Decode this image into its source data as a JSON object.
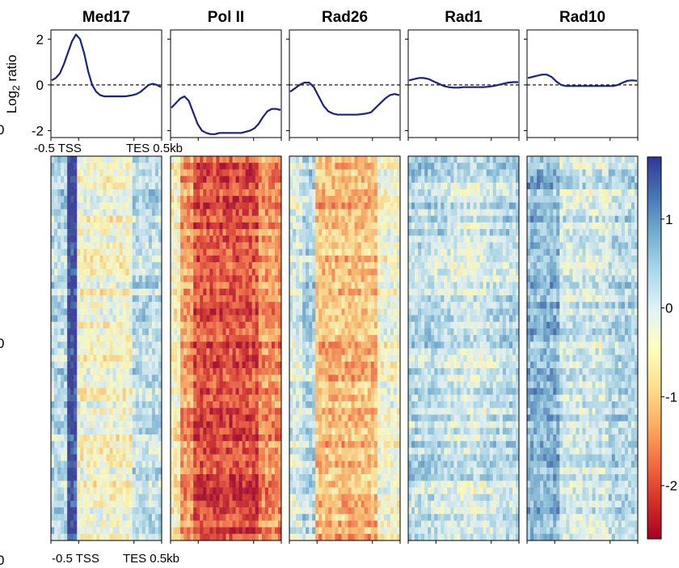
{
  "chart_data": {
    "type": "heatmap",
    "panels": [
      {
        "title": "Med17",
        "profile": [
          0.2,
          0.3,
          0.5,
          0.9,
          1.4,
          1.9,
          2.2,
          2.0,
          1.4,
          0.6,
          0.0,
          -0.3,
          -0.45,
          -0.5,
          -0.5,
          -0.5,
          -0.5,
          -0.5,
          -0.5,
          -0.48,
          -0.45,
          -0.4,
          -0.3,
          -0.15,
          0.0,
          0.05,
          0.0,
          -0.1
        ],
        "heatmap_pattern": "strong_tss_band"
      },
      {
        "title": "Pol II",
        "profile": [
          -1.0,
          -0.8,
          -0.6,
          -0.5,
          -0.7,
          -1.2,
          -1.7,
          -2.0,
          -2.1,
          -2.15,
          -2.15,
          -2.1,
          -2.1,
          -2.1,
          -2.1,
          -2.1,
          -2.1,
          -2.05,
          -2.0,
          -1.9,
          -1.7,
          -1.4,
          -1.15,
          -1.05,
          -1.05,
          -1.1
        ],
        "heatmap_pattern": "body_depletion"
      },
      {
        "title": "Rad26",
        "profile": [
          -0.3,
          -0.15,
          0.0,
          0.1,
          0.1,
          -0.1,
          -0.5,
          -0.9,
          -1.15,
          -1.25,
          -1.3,
          -1.3,
          -1.3,
          -1.3,
          -1.3,
          -1.28,
          -1.25,
          -1.2,
          -1.0,
          -0.8,
          -0.6,
          -0.45,
          -0.4,
          -0.45
        ],
        "heatmap_pattern": "moderate_body"
      },
      {
        "title": "Rad1",
        "profile": [
          0.2,
          0.25,
          0.3,
          0.3,
          0.25,
          0.15,
          0.05,
          -0.05,
          -0.1,
          -0.12,
          -0.12,
          -0.1,
          -0.1,
          -0.1,
          -0.1,
          -0.1,
          -0.08,
          -0.05,
          0.0,
          0.05,
          0.1,
          0.12,
          0.12
        ],
        "heatmap_pattern": "weak_uniform"
      },
      {
        "title": "Rad10",
        "profile": [
          0.3,
          0.35,
          0.4,
          0.45,
          0.45,
          0.35,
          0.15,
          0.0,
          -0.05,
          -0.05,
          -0.05,
          -0.05,
          -0.05,
          -0.05,
          -0.05,
          -0.05,
          -0.05,
          -0.05,
          -0.05,
          0.0,
          0.1,
          0.18,
          0.2,
          0.18
        ],
        "heatmap_pattern": "weak_tss"
      }
    ],
    "profile_ylabel": "Log₂ ratio",
    "profile_ylim": [
      -2.3,
      2.4
    ],
    "profile_yticks": [
      2,
      0,
      -2
    ],
    "profile_xticklabels": [
      "-0.5 TSS",
      "TES 0.5kb"
    ],
    "heatmap_xticklabels": [
      "-0.5 TSS",
      "TES 0.5kb"
    ],
    "left_partial_ticks": [
      "0",
      "0",
      "0"
    ],
    "colorbar": {
      "ticks": [
        "1",
        "0",
        "-1",
        "-2"
      ],
      "tick_values": [
        1,
        0,
        -1,
        -2
      ],
      "range": [
        -2.6,
        1.7
      ],
      "colormap": "RdYlBu",
      "colors": [
        "#a50026",
        "#d73027",
        "#f46d43",
        "#fdae61",
        "#fee090",
        "#ffffbf",
        "#e0f3f8",
        "#abd9e9",
        "#74add1",
        "#4575b4",
        "#313695"
      ]
    },
    "line_color": "#1a237e",
    "grid": false
  }
}
